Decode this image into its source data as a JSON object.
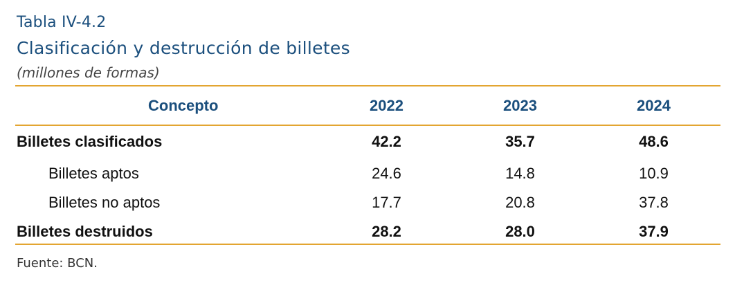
{
  "header": {
    "table_label": "Tabla IV-4.2",
    "title": "Clasificación y destrucción de billetes",
    "units": "(millones de formas)"
  },
  "table": {
    "columns": [
      "Concepto",
      "2022",
      "2023",
      "2024"
    ],
    "rows": [
      {
        "label": "Billetes clasificados",
        "values": [
          "42.2",
          "35.7",
          "48.6"
        ]
      },
      {
        "label": "Billetes aptos",
        "values": [
          "24.6",
          "14.8",
          "10.9"
        ]
      },
      {
        "label": "Billetes no aptos",
        "values": [
          "17.7",
          "20.8",
          "37.8"
        ]
      },
      {
        "label": "Billetes destruidos",
        "values": [
          "28.2",
          "28.0",
          "37.9"
        ]
      }
    ]
  },
  "footer": {
    "source": "Fuente: BCN."
  },
  "colors": {
    "title": "#1b4f7d",
    "rule": "#e3a531",
    "text": "#111111"
  }
}
